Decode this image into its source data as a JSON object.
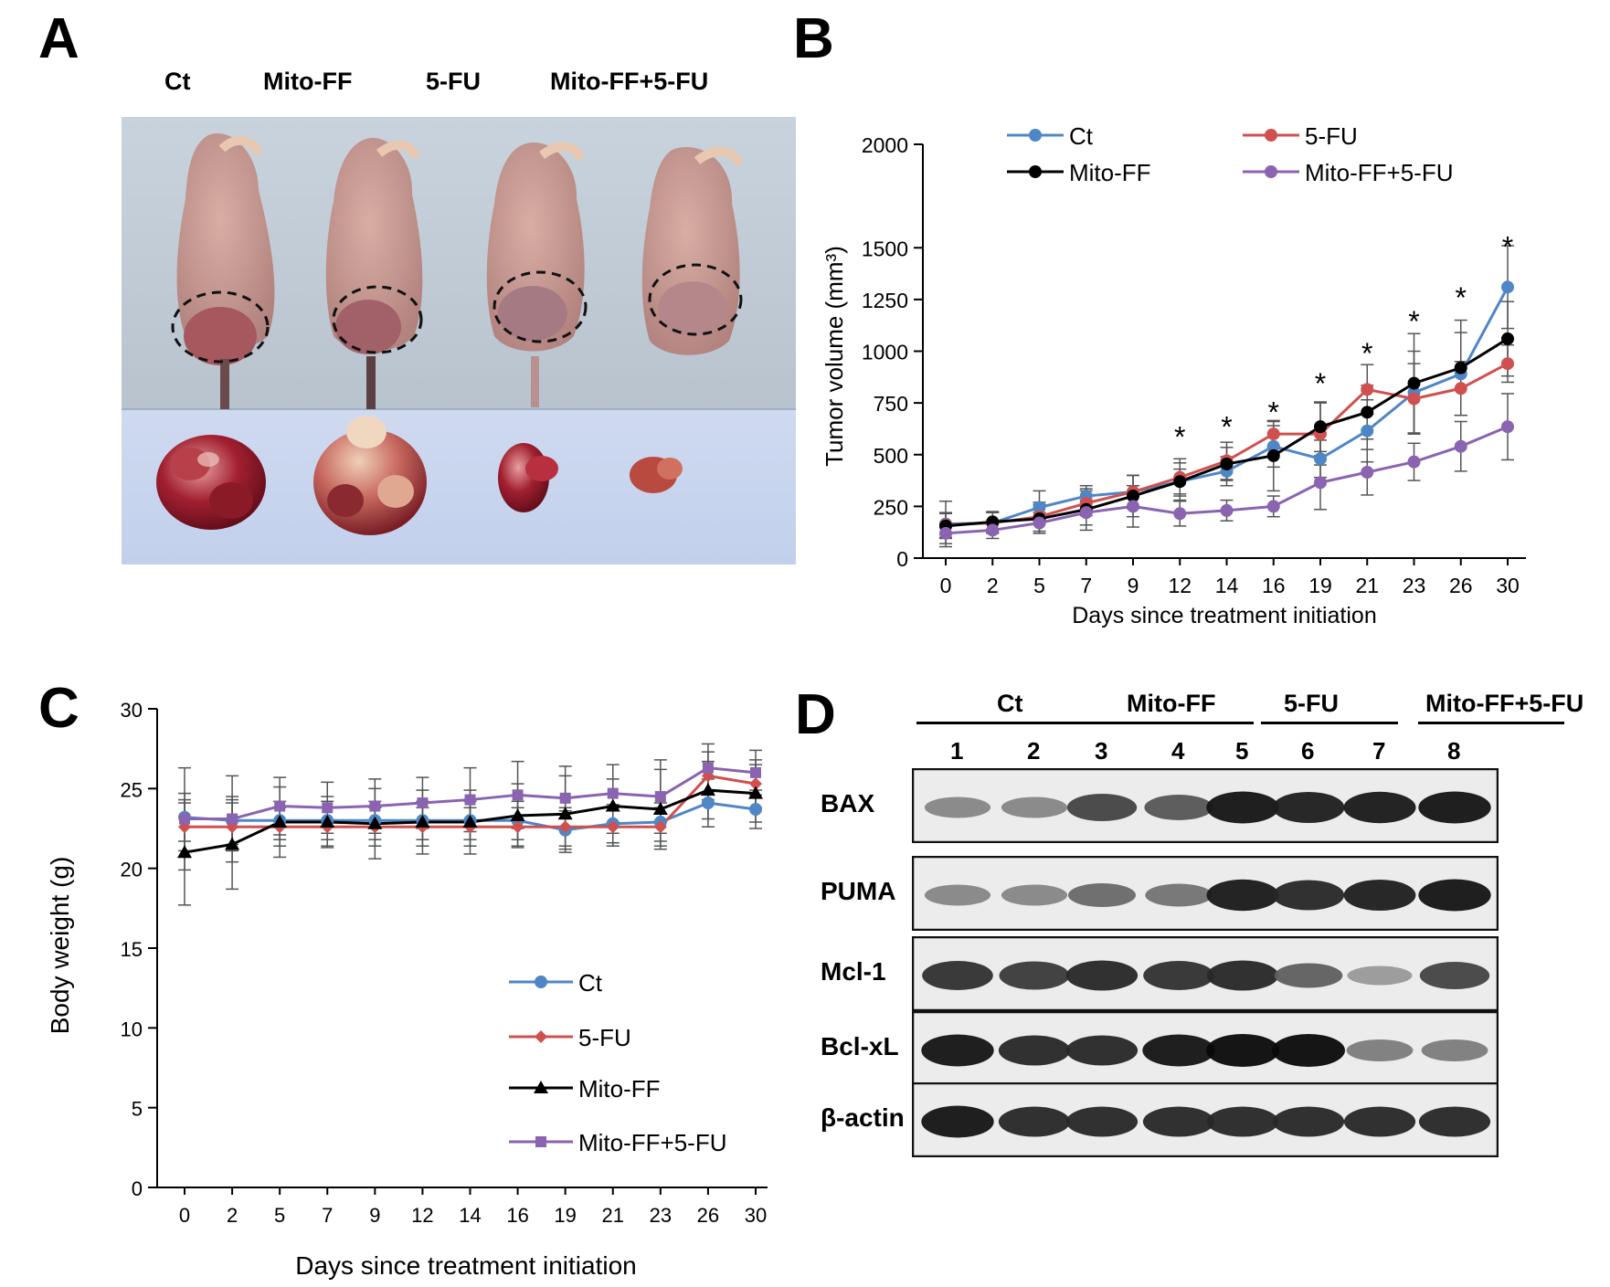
{
  "panels": {
    "a": "A",
    "b": "B",
    "c": "C",
    "d": "D"
  },
  "colors": {
    "ct": "#4f86c6",
    "fu": "#d0504f",
    "mitoff": "#000000",
    "combo": "#8a63b1"
  },
  "panelA": {
    "groups": [
      "Ct",
      "Mito-FF",
      "5-FU",
      "Mito-FF+5-FU"
    ]
  },
  "chart_data": [
    {
      "panel": "B",
      "type": "line",
      "xlabel": "Days since treatment initiation",
      "ylabel": "Tumor volume (mm³)",
      "ylim": [
        0,
        2000
      ],
      "yticks": [
        0,
        250,
        500,
        750,
        1000,
        1250,
        1500,
        2000
      ],
      "categories": [
        "0",
        "2",
        "5",
        "7",
        "9",
        "12",
        "14",
        "16",
        "19",
        "21",
        "23",
        "26",
        "30"
      ],
      "legend": [
        "Ct",
        "5-FU",
        "Mito-FF",
        "Mito-FF+5-FU"
      ],
      "legend_position": "top",
      "significance": {
        "symbol": "*",
        "categories": [
          "12",
          "14",
          "16",
          "19",
          "21",
          "23",
          "26",
          "30"
        ],
        "values": [
          615,
          665,
          735,
          875,
          1020,
          1175,
          1290,
          1535
        ]
      },
      "series": [
        {
          "name": "Ct",
          "color_key": "ct",
          "values": [
            165,
            170,
            245,
            300,
            320,
            370,
            420,
            540,
            480,
            615,
            800,
            890,
            1310
          ],
          "errors": [
            110,
            50,
            80,
            50,
            80,
            60,
            70,
            100,
            90,
            150,
            200,
            200,
            200
          ]
        },
        {
          "name": "5-FU",
          "color_key": "fu",
          "values": [
            160,
            170,
            200,
            265,
            320,
            390,
            470,
            600,
            600,
            815,
            770,
            820,
            940
          ],
          "errors": [
            60,
            50,
            70,
            60,
            80,
            90,
            90,
            60,
            150,
            120,
            170,
            130,
            90
          ]
        },
        {
          "name": "Mito-FF",
          "color_key": "mitoff",
          "values": [
            155,
            175,
            190,
            235,
            300,
            370,
            455,
            495,
            635,
            705,
            845,
            920,
            1060
          ],
          "errors": [
            60,
            50,
            70,
            100,
            100,
            90,
            80,
            170,
            120,
            130,
            240,
            230,
            180
          ]
        },
        {
          "name": "Mito-FF+5-FU",
          "color_key": "combo",
          "values": [
            120,
            135,
            170,
            220,
            250,
            215,
            230,
            250,
            365,
            415,
            465,
            540,
            635
          ],
          "errors": [
            50,
            40,
            50,
            60,
            100,
            60,
            50,
            50,
            130,
            110,
            90,
            120,
            160
          ]
        }
      ]
    },
    {
      "panel": "C",
      "type": "line",
      "xlabel": "Days since treatment initiation",
      "ylabel": "Body weight (g)",
      "ylim": [
        0,
        30
      ],
      "yticks": [
        0,
        5,
        10,
        15,
        20,
        25,
        30
      ],
      "categories": [
        "0",
        "2",
        "5",
        "7",
        "9",
        "12",
        "14",
        "16",
        "19",
        "21",
        "23",
        "26",
        "30"
      ],
      "legend": [
        "Ct",
        "5-FU",
        "Mito-FF",
        "Mito-FF+5-FU"
      ],
      "legend_position": "lower-right",
      "series": [
        {
          "name": "Ct",
          "color_key": "ct",
          "marker": "circle",
          "values": [
            23.2,
            23.0,
            23.0,
            23.0,
            23.0,
            23.0,
            23.0,
            23.0,
            22.4,
            22.8,
            22.9,
            24.1,
            23.7
          ],
          "errors": [
            1.5,
            1.5,
            1.2,
            1.2,
            1.2,
            1.2,
            1.2,
            1.2,
            1.2,
            1.2,
            1.2,
            1.5,
            1.2
          ]
        },
        {
          "name": "5-FU",
          "color_key": "fu",
          "marker": "diamond",
          "values": [
            22.6,
            22.6,
            22.6,
            22.6,
            22.6,
            22.6,
            22.6,
            22.6,
            22.6,
            22.6,
            22.6,
            25.8,
            25.3
          ],
          "errors": [
            1.5,
            1.5,
            1.2,
            1.2,
            1.2,
            1.2,
            1.2,
            1.2,
            1.2,
            1.2,
            1.2,
            1.5,
            1.5
          ]
        },
        {
          "name": "Mito-FF",
          "color_key": "mitoff",
          "marker": "triangle",
          "values": [
            21.0,
            21.5,
            22.9,
            22.9,
            22.8,
            22.9,
            22.9,
            23.3,
            23.4,
            23.9,
            23.7,
            24.9,
            24.7
          ],
          "errors": [
            3.3,
            2.8,
            2.2,
            1.6,
            2.2,
            2.0,
            2.0,
            2.0,
            2.4,
            1.7,
            2.5,
            1.8,
            1.8
          ]
        },
        {
          "name": "Mito-FF+5-FU",
          "color_key": "combo",
          "marker": "square",
          "values": [
            23.1,
            23.1,
            23.9,
            23.8,
            23.9,
            24.1,
            24.3,
            24.6,
            24.4,
            24.7,
            24.5,
            26.3,
            26.0
          ],
          "errors": [
            3.2,
            2.7,
            1.8,
            1.6,
            1.7,
            1.6,
            2.0,
            2.1,
            2.0,
            1.8,
            2.3,
            1.5,
            1.4
          ]
        }
      ]
    }
  ],
  "panelD": {
    "groups": [
      "Ct",
      "Mito-FF",
      "5-FU",
      "Mito-FF+5-FU"
    ],
    "lanes": [
      "1",
      "2",
      "3",
      "4",
      "5",
      "6",
      "7",
      "8"
    ],
    "rows": [
      {
        "label": "BAX",
        "intensities": [
          0.35,
          0.35,
          0.7,
          0.6,
          0.95,
          0.9,
          0.92,
          0.95
        ]
      },
      {
        "label": "PUMA",
        "intensities": [
          0.35,
          0.35,
          0.5,
          0.45,
          0.92,
          0.85,
          0.9,
          0.95
        ]
      },
      {
        "label": "Mcl-1",
        "intensities": [
          0.8,
          0.75,
          0.85,
          0.8,
          0.85,
          0.55,
          0.25,
          0.7
        ]
      },
      {
        "label": "Bcl-xL",
        "intensities": [
          0.95,
          0.85,
          0.85,
          0.95,
          1.0,
          1.0,
          0.4,
          0.4
        ]
      },
      {
        "label": "β-actin",
        "intensities": [
          0.95,
          0.85,
          0.85,
          0.85,
          0.85,
          0.85,
          0.85,
          0.85
        ]
      }
    ]
  }
}
